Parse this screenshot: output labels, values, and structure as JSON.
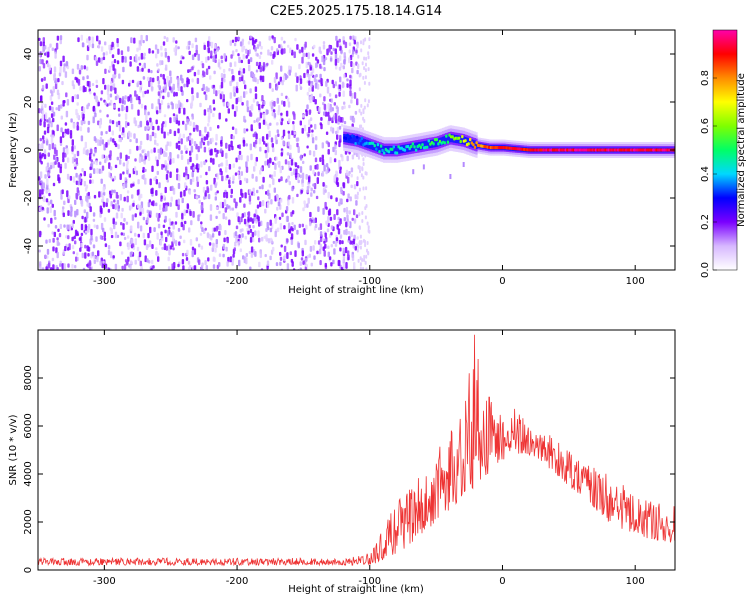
{
  "figure": {
    "title": "C2E5.2025.175.18.14.G14"
  },
  "chart_data": [
    {
      "type": "heatmap",
      "xlabel": "Height of straight line (km)",
      "ylabel": "Frequency (Hz)",
      "xlim": [
        -350,
        130
      ],
      "ylim": [
        -50,
        50
      ],
      "x_ticks": [
        -300,
        -200,
        -100,
        0,
        100
      ],
      "y_ticks": [
        -40,
        -20,
        0,
        20,
        40
      ],
      "noise_region": {
        "x_range": [
          -350,
          -110
        ],
        "y_range": [
          -50,
          48
        ]
      },
      "signal_ridge": {
        "x": [
          -120,
          -110,
          -100,
          -90,
          -80,
          -70,
          -60,
          -50,
          -40,
          -30,
          -20,
          -10,
          0,
          20,
          40,
          60,
          80,
          100,
          130
        ],
        "y": [
          5,
          4,
          2,
          0,
          0,
          1,
          2,
          3,
          5,
          4,
          2,
          1,
          1,
          0,
          0,
          0,
          0,
          0,
          0
        ],
        "amplitude": [
          0.35,
          0.35,
          0.4,
          0.42,
          0.45,
          0.45,
          0.48,
          0.5,
          0.55,
          0.65,
          0.8,
          0.85,
          0.9,
          0.92,
          0.95,
          0.95,
          0.95,
          0.95,
          0.95
        ]
      },
      "colorbar": {
        "label": "Normalized spectral amplitude",
        "ticks": [
          0.0,
          0.2,
          0.4,
          0.6,
          0.8
        ],
        "range": [
          0,
          1
        ],
        "colors": [
          "#ffffff",
          "#d7b8ff",
          "#7a00ff",
          "#0000ff",
          "#00d8ff",
          "#00ff66",
          "#7fff00",
          "#ffff00",
          "#ff8c00",
          "#ff0000",
          "#ff00aa"
        ]
      },
      "noise_color": "#7a00ff"
    },
    {
      "type": "line",
      "xlabel": "Height of straight line (km)",
      "ylabel": "SNR (10 * v/v)",
      "xlim": [
        -350,
        130
      ],
      "ylim": [
        0,
        10000
      ],
      "x_ticks": [
        -300,
        -200,
        -100,
        0,
        100
      ],
      "y_ticks": [
        0,
        2000,
        4000,
        6000,
        8000
      ],
      "color": "#ee3333",
      "series": [
        {
          "x": [
            -350,
            -300,
            -250,
            -200,
            -150,
            -120,
            -100,
            -90,
            -80,
            -70,
            -60,
            -50,
            -40,
            -30,
            -25,
            -20,
            -15,
            -10,
            0,
            10,
            20,
            30,
            40,
            50,
            60,
            70,
            80,
            90,
            100,
            110,
            120,
            130
          ],
          "envelope_low": [
            200,
            200,
            200,
            200,
            200,
            200,
            200,
            400,
            700,
            1000,
            1500,
            2000,
            2500,
            3000,
            3200,
            3500,
            3800,
            4000,
            4500,
            4800,
            4800,
            4500,
            4000,
            3500,
            3000,
            2500,
            2000,
            1700,
            1500,
            1300,
            1200,
            1100
          ],
          "envelope_high": [
            500,
            500,
            500,
            500,
            500,
            450,
            700,
            1800,
            2800,
            3500,
            4000,
            4800,
            6000,
            6500,
            8200,
            9800,
            7000,
            7200,
            6500,
            6800,
            6000,
            5800,
            5500,
            5000,
            4500,
            4300,
            4000,
            3600,
            3000,
            2900,
            2800,
            2700
          ],
          "peaks": [
            {
              "x": -21,
              "y": 9800
            },
            {
              "x": -25,
              "y": 8200
            },
            {
              "x": -10,
              "y": 7200
            }
          ]
        }
      ]
    }
  ]
}
